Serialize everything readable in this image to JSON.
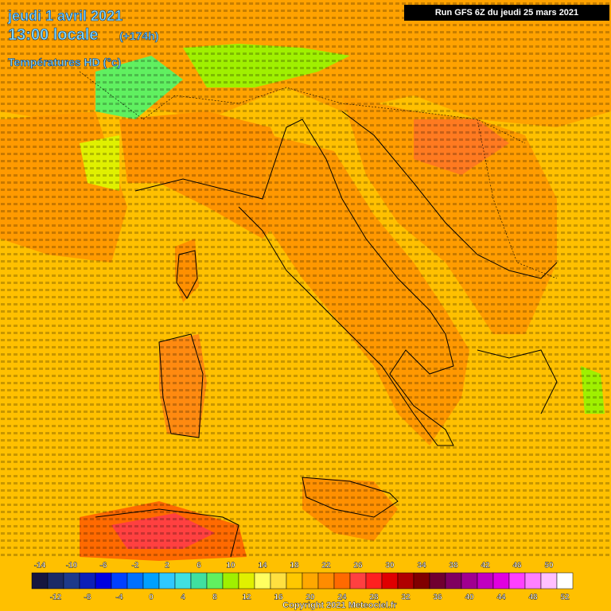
{
  "header": {
    "date": "jeudi 1 avril 2021",
    "time": "13:00 locale",
    "lead": "(+174h)",
    "parameter": "Températures HD (°c)",
    "run": "Run GFS 6Z du jeudi 25 mars 2021"
  },
  "footer": {
    "copyright": "Copyright 2021 Meteociel.fr"
  },
  "legend": {
    "values": [
      -14,
      -12,
      -10,
      -8,
      -6,
      -4,
      -2,
      0,
      2,
      4,
      6,
      8,
      10,
      12,
      14,
      16,
      18,
      20,
      22,
      24,
      26,
      28,
      30,
      32,
      34,
      36,
      38,
      40,
      42,
      44,
      46,
      48,
      50,
      52
    ],
    "colors": [
      "#16163f",
      "#1b2a66",
      "#1e3a8a",
      "#0d1fb8",
      "#0000e0",
      "#0040ff",
      "#0070ff",
      "#00a0ff",
      "#30c8ff",
      "#40e0e0",
      "#40e0a0",
      "#60f060",
      "#a0f000",
      "#e0f000",
      "#ffff60",
      "#ffe040",
      "#ffc800",
      "#ffa800",
      "#ff8c00",
      "#ff6a00",
      "#ff4040",
      "#ff2020",
      "#e00000",
      "#b00000",
      "#800000",
      "#700030",
      "#800060",
      "#a00090",
      "#c000c0",
      "#e000e0",
      "#ff40ff",
      "#ff80ff",
      "#ffc0ff",
      "#ffffff"
    ]
  }
}
